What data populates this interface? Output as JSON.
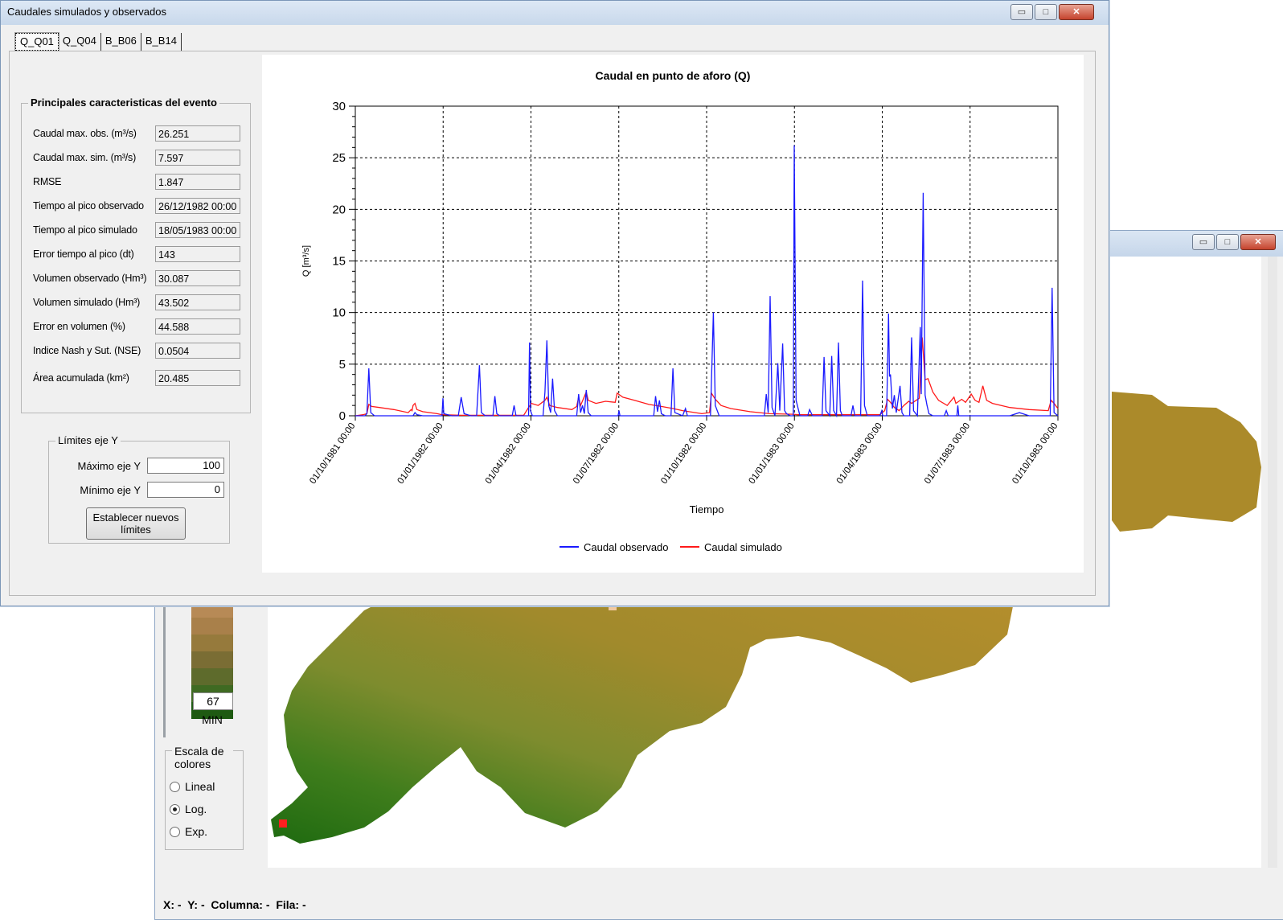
{
  "main_window": {
    "title": "Caudales simulados y observados",
    "tabs": [
      "Q_Q01",
      "Q_Q04",
      "B_B06",
      "B_B14"
    ]
  },
  "event_group": {
    "title": "Principales caracteristicas del evento",
    "fields": [
      {
        "label": "Caudal max. obs. (m³/s)",
        "value": "26.251"
      },
      {
        "label": "Caudal max. sim. (m³/s)",
        "value": "7.597"
      },
      {
        "label": "RMSE",
        "value": "1.847"
      },
      {
        "label": "Tiempo al pico observado",
        "value": "26/12/1982 00:00"
      },
      {
        "label": "Tiempo al pico simulado",
        "value": "18/05/1983 00:00"
      },
      {
        "label": "Error tiempo al pico (dt)",
        "value": "143"
      },
      {
        "label": "Volumen observado (Hm³)",
        "value": "30.087"
      },
      {
        "label": "Volumen simulado (Hm³)",
        "value": "43.502"
      },
      {
        "label": "Error en volumen (%)",
        "value": "44.588"
      },
      {
        "label": "Indice Nash y Sut. (NSE)",
        "value": "0.0504"
      },
      {
        "label": "Área acumulada (km²)",
        "value": "20.485"
      }
    ]
  },
  "limits_group": {
    "title": "Límites eje Y",
    "max_label": "Máximo eje Y",
    "max_value": "100",
    "min_label": "Mínimo eje Y",
    "min_value": "0",
    "button_line1": "Establecer nuevos",
    "button_line2": "límites"
  },
  "chart_data": {
    "type": "line",
    "title": "Caudal en punto de aforo (Q)",
    "xlabel": "Tiempo",
    "ylabel": "Q [m³/s]",
    "ylim": [
      0,
      30
    ],
    "yticks": [
      0,
      5,
      10,
      15,
      20,
      25,
      30
    ],
    "xticks": [
      "01/10/1981 00:00",
      "01/01/1982 00:00",
      "01/04/1982 00:00",
      "01/07/1982 00:00",
      "01/10/1982 00:00",
      "01/01/1983 00:00",
      "01/04/1983 00:00",
      "01/07/1983 00:00",
      "01/10/1983 00:00"
    ],
    "xlim_days": [
      0,
      730
    ],
    "grid": true,
    "legend_position": "bottom",
    "series": [
      {
        "name": "Caudal observado",
        "color": "#1a1aff",
        "points": [
          [
            0,
            0
          ],
          [
            10,
            0
          ],
          [
            12,
            0.2
          ],
          [
            14,
            4.6
          ],
          [
            16,
            0.3
          ],
          [
            20,
            0
          ],
          [
            60,
            0
          ],
          [
            62,
            0.3
          ],
          [
            64,
            0.1
          ],
          [
            70,
            0
          ],
          [
            90,
            0
          ],
          [
            91,
            1.7
          ],
          [
            92,
            0.2
          ],
          [
            100,
            0
          ],
          [
            107,
            0
          ],
          [
            110,
            1.8
          ],
          [
            113,
            0.2
          ],
          [
            120,
            0
          ],
          [
            126,
            0
          ],
          [
            129,
            4.9
          ],
          [
            131,
            0.3
          ],
          [
            135,
            0
          ],
          [
            143,
            0
          ],
          [
            145,
            1.9
          ],
          [
            147,
            0.2
          ],
          [
            150,
            0
          ],
          [
            163,
            0
          ],
          [
            165,
            1.0
          ],
          [
            167,
            0
          ],
          [
            180,
            0
          ],
          [
            181,
            7.1
          ],
          [
            182,
            0.5
          ],
          [
            184,
            0
          ],
          [
            195,
            0
          ],
          [
            197,
            2.3
          ],
          [
            199,
            7.3
          ],
          [
            201,
            1.0
          ],
          [
            203,
            0.3
          ],
          [
            205,
            3.6
          ],
          [
            207,
            0.5
          ],
          [
            210,
            0
          ],
          [
            230,
            0
          ],
          [
            232,
            2.1
          ],
          [
            234,
            0.3
          ],
          [
            236,
            1.0
          ],
          [
            238,
            0.2
          ],
          [
            240,
            2.5
          ],
          [
            242,
            0.3
          ],
          [
            245,
            0
          ],
          [
            273,
            0
          ],
          [
            274,
            0.5
          ],
          [
            275,
            0
          ],
          [
            310,
            0
          ],
          [
            312,
            1.9
          ],
          [
            314,
            0.4
          ],
          [
            316,
            1.5
          ],
          [
            318,
            0.2
          ],
          [
            322,
            0
          ],
          [
            328,
            0
          ],
          [
            330,
            4.6
          ],
          [
            332,
            0.3
          ],
          [
            340,
            0
          ],
          [
            343,
            0.7
          ],
          [
            345,
            0
          ],
          [
            369,
            0
          ],
          [
            372,
            10.0
          ],
          [
            374,
            1.0
          ],
          [
            378,
            0
          ],
          [
            425,
            0
          ],
          [
            427,
            2.1
          ],
          [
            429,
            0.3
          ],
          [
            431,
            11.6
          ],
          [
            433,
            0.8
          ],
          [
            436,
            0
          ],
          [
            439,
            5.1
          ],
          [
            441,
            0.5
          ],
          [
            444,
            7.0
          ],
          [
            446,
            0.5
          ],
          [
            448,
            0.2
          ],
          [
            452,
            0
          ],
          [
            455,
            0
          ],
          [
            456,
            26.2
          ],
          [
            458,
            1.5
          ],
          [
            462,
            0
          ],
          [
            470,
            0
          ],
          [
            472,
            0.6
          ],
          [
            475,
            0
          ],
          [
            485,
            0
          ],
          [
            487,
            5.7
          ],
          [
            489,
            0.5
          ],
          [
            493,
            0
          ],
          [
            495,
            5.8
          ],
          [
            497,
            0.5
          ],
          [
            500,
            0
          ],
          [
            502,
            7.1
          ],
          [
            504,
            0.5
          ],
          [
            506,
            0
          ],
          [
            515,
            0
          ],
          [
            517,
            1.0
          ],
          [
            519,
            0
          ],
          [
            525,
            0
          ],
          [
            527,
            13.1
          ],
          [
            529,
            1.0
          ],
          [
            532,
            0
          ],
          [
            545,
            0
          ],
          [
            547,
            0.5
          ],
          [
            548,
            0
          ],
          [
            552,
            0
          ],
          [
            554,
            9.9
          ],
          [
            555,
            3.8
          ],
          [
            556,
            4.0
          ],
          [
            558,
            0.7
          ],
          [
            560,
            2.0
          ],
          [
            562,
            0.3
          ],
          [
            566,
            2.9
          ],
          [
            568,
            0.3
          ],
          [
            570,
            0
          ],
          [
            576,
            0
          ],
          [
            578,
            7.6
          ],
          [
            580,
            0.5
          ],
          [
            584,
            0
          ],
          [
            587,
            8.6
          ],
          [
            588,
            2.1
          ],
          [
            590,
            21.6
          ],
          [
            592,
            2.0
          ],
          [
            594,
            1.0
          ],
          [
            596,
            0.2
          ],
          [
            600,
            0
          ],
          [
            612,
            0
          ],
          [
            614,
            0.5
          ],
          [
            616,
            0
          ],
          [
            625,
            0
          ],
          [
            626,
            1.0
          ],
          [
            627,
            0
          ],
          [
            680,
            0
          ],
          [
            690,
            0.3
          ],
          [
            700,
            0
          ],
          [
            722,
            0
          ],
          [
            724,
            12.4
          ],
          [
            726,
            0.3
          ],
          [
            730,
            0
          ]
        ]
      },
      {
        "name": "Caudal simulado",
        "color": "#ff1a1a",
        "points": [
          [
            0,
            0
          ],
          [
            8,
            0.1
          ],
          [
            12,
            0.2
          ],
          [
            14,
            1.1
          ],
          [
            17,
            0.9
          ],
          [
            25,
            0.8
          ],
          [
            40,
            0.6
          ],
          [
            55,
            0.3
          ],
          [
            58,
            0.6
          ],
          [
            59,
            0.5
          ],
          [
            60,
            1.0
          ],
          [
            62,
            1.2
          ],
          [
            64,
            0.6
          ],
          [
            70,
            0.4
          ],
          [
            85,
            0.2
          ],
          [
            90,
            0.1
          ],
          [
            110,
            0.05
          ],
          [
            175,
            0.05
          ],
          [
            180,
            0.8
          ],
          [
            183,
            1.2
          ],
          [
            190,
            1.0
          ],
          [
            197,
            1.5
          ],
          [
            199,
            1.8
          ],
          [
            202,
            1.0
          ],
          [
            210,
            0.8
          ],
          [
            225,
            0.6
          ],
          [
            230,
            0.9
          ],
          [
            232,
            1.8
          ],
          [
            234,
            1.0
          ],
          [
            240,
            2.3
          ],
          [
            242,
            1.5
          ],
          [
            250,
            1.2
          ],
          [
            260,
            1.4
          ],
          [
            270,
            1.3
          ],
          [
            272,
            2.2
          ],
          [
            278,
            1.8
          ],
          [
            290,
            1.5
          ],
          [
            305,
            1.1
          ],
          [
            318,
            0.9
          ],
          [
            330,
            0.7
          ],
          [
            340,
            0.5
          ],
          [
            360,
            0.2
          ],
          [
            368,
            0.3
          ],
          [
            370,
            2.2
          ],
          [
            374,
            1.6
          ],
          [
            380,
            1.0
          ],
          [
            390,
            0.7
          ],
          [
            410,
            0.4
          ],
          [
            430,
            0.2
          ],
          [
            455,
            0.15
          ],
          [
            460,
            0.1
          ],
          [
            500,
            0.1
          ],
          [
            545,
            0.1
          ],
          [
            550,
            0.5
          ],
          [
            553,
            1.6
          ],
          [
            556,
            1.3
          ],
          [
            560,
            0.8
          ],
          [
            565,
            0.5
          ],
          [
            570,
            1.0
          ],
          [
            575,
            1.4
          ],
          [
            578,
            1.2
          ],
          [
            586,
            1.7
          ],
          [
            589,
            7.6
          ],
          [
            592,
            3.5
          ],
          [
            595,
            3.6
          ],
          [
            600,
            2.3
          ],
          [
            606,
            1.5
          ],
          [
            615,
            1.0
          ],
          [
            622,
            1.8
          ],
          [
            624,
            1.2
          ],
          [
            630,
            1.6
          ],
          [
            634,
            1.3
          ],
          [
            640,
            2.1
          ],
          [
            644,
            1.5
          ],
          [
            648,
            1.3
          ],
          [
            652,
            2.9
          ],
          [
            656,
            1.5
          ],
          [
            662,
            1.2
          ],
          [
            680,
            0.8
          ],
          [
            700,
            0.6
          ],
          [
            720,
            0.5
          ],
          [
            723,
            1.5
          ],
          [
            726,
            1.2
          ],
          [
            730,
            0.7
          ]
        ]
      }
    ]
  },
  "map_window": {
    "legend_min_value": "67",
    "legend_min_label": "MIN",
    "scale_group_title": "Escala de colores",
    "scale_options": [
      {
        "label": "Lineal",
        "selected": false
      },
      {
        "label": "Log.",
        "selected": true
      },
      {
        "label": "Exp.",
        "selected": false
      }
    ],
    "status": {
      "x_label": "X:",
      "x_value": "-",
      "y_label": "Y:",
      "y_value": "-",
      "col_label": "Columna:",
      "col_value": "-",
      "row_label": "Fila:",
      "row_value": "-"
    },
    "ramp_colors": [
      "#b78a56",
      "#a9804a",
      "#967a3c",
      "#7a6d34",
      "#5e6b2c",
      "#3f6a22",
      "#1e5a12"
    ],
    "terrain_colors": {
      "low": "#2d7a1c",
      "mid": "#7a8a2a",
      "high": "#b08a2c"
    }
  },
  "window_controls": {
    "minimize": "▭",
    "maximize": "□",
    "close": "✕"
  }
}
